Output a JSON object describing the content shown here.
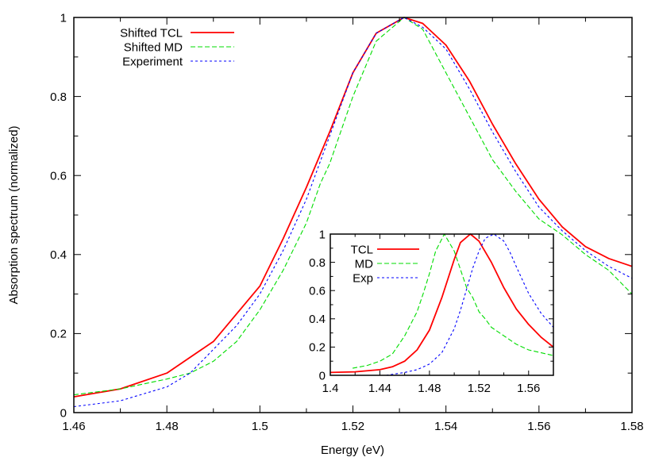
{
  "chart_data": [
    {
      "type": "line",
      "title": "",
      "xlabel": "Energy (eV)",
      "ylabel": "Absorption spectrum (normalized)",
      "xlim": [
        1.46,
        1.58
      ],
      "ylim": [
        0,
        1
      ],
      "xticks": [
        "1.46",
        "1.48",
        "1.5",
        "1.52",
        "1.54",
        "1.56",
        "1.58"
      ],
      "yticks": [
        "0",
        "0.2",
        "0.4",
        "0.6",
        "0.8",
        "1"
      ],
      "grid": false,
      "legend_position": "top-left",
      "series": [
        {
          "name": "Shifted TCL",
          "color": "#ff0000",
          "style": "solid",
          "x": [
            1.46,
            1.47,
            1.48,
            1.49,
            1.5,
            1.505,
            1.51,
            1.515,
            1.52,
            1.525,
            1.531,
            1.535,
            1.54,
            1.545,
            1.55,
            1.555,
            1.56,
            1.565,
            1.57,
            1.575,
            1.58
          ],
          "y": [
            0.04,
            0.06,
            0.1,
            0.18,
            0.32,
            0.44,
            0.57,
            0.71,
            0.86,
            0.96,
            1.0,
            0.985,
            0.93,
            0.84,
            0.73,
            0.63,
            0.54,
            0.47,
            0.42,
            0.39,
            0.37
          ]
        },
        {
          "name": "Shifted MD",
          "color": "#00dd00",
          "style": "dashed",
          "x": [
            1.46,
            1.47,
            1.48,
            1.485,
            1.49,
            1.495,
            1.5,
            1.505,
            1.51,
            1.513,
            1.515,
            1.52,
            1.525,
            1.531,
            1.535,
            1.54,
            1.545,
            1.55,
            1.555,
            1.56,
            1.565,
            1.57,
            1.575,
            1.58
          ],
          "y": [
            0.045,
            0.06,
            0.085,
            0.1,
            0.13,
            0.18,
            0.26,
            0.36,
            0.48,
            0.58,
            0.63,
            0.8,
            0.94,
            1.0,
            0.97,
            0.86,
            0.75,
            0.64,
            0.56,
            0.49,
            0.45,
            0.4,
            0.36,
            0.3
          ]
        },
        {
          "name": "Experiment",
          "color": "#0000ff",
          "style": "dotted",
          "x": [
            1.46,
            1.47,
            1.48,
            1.485,
            1.49,
            1.495,
            1.5,
            1.505,
            1.51,
            1.515,
            1.52,
            1.525,
            1.531,
            1.535,
            1.54,
            1.545,
            1.55,
            1.555,
            1.56,
            1.565,
            1.57,
            1.575,
            1.58
          ],
          "y": [
            0.015,
            0.03,
            0.065,
            0.1,
            0.16,
            0.22,
            0.3,
            0.41,
            0.54,
            0.7,
            0.86,
            0.96,
            1.0,
            0.975,
            0.92,
            0.82,
            0.71,
            0.61,
            0.52,
            0.46,
            0.41,
            0.37,
            0.34
          ]
        }
      ]
    },
    {
      "type": "line",
      "title": "inset",
      "xlabel": "",
      "ylabel": "",
      "xlim": [
        1.4,
        1.58
      ],
      "ylim": [
        0,
        1
      ],
      "xticks": [
        "1.4",
        "1.44",
        "1.48",
        "1.52",
        "1.56"
      ],
      "yticks": [
        "0",
        "0.2",
        "0.4",
        "0.6",
        "0.8",
        "1"
      ],
      "grid": false,
      "legend_position": "top-left",
      "series": [
        {
          "name": "TCL",
          "color": "#ff0000",
          "style": "solid",
          "x": [
            1.4,
            1.42,
            1.44,
            1.45,
            1.46,
            1.47,
            1.48,
            1.49,
            1.5,
            1.505,
            1.513,
            1.52,
            1.53,
            1.54,
            1.55,
            1.56,
            1.57,
            1.58
          ],
          "y": [
            0.02,
            0.025,
            0.04,
            0.06,
            0.1,
            0.18,
            0.32,
            0.55,
            0.82,
            0.94,
            1.0,
            0.95,
            0.8,
            0.62,
            0.47,
            0.36,
            0.27,
            0.2
          ]
        },
        {
          "name": "MD",
          "color": "#00dd00",
          "style": "dashed",
          "x": [
            1.418,
            1.43,
            1.44,
            1.45,
            1.46,
            1.47,
            1.475,
            1.48,
            1.485,
            1.492,
            1.5,
            1.505,
            1.51,
            1.515,
            1.52,
            1.525,
            1.53,
            1.54,
            1.55,
            1.56,
            1.58
          ],
          "y": [
            0.05,
            0.07,
            0.1,
            0.15,
            0.28,
            0.45,
            0.58,
            0.72,
            0.88,
            1.0,
            0.88,
            0.75,
            0.62,
            0.55,
            0.45,
            0.4,
            0.34,
            0.28,
            0.22,
            0.18,
            0.14
          ]
        },
        {
          "name": "Exp",
          "color": "#0000ff",
          "style": "dotted",
          "x": [
            1.445,
            1.46,
            1.47,
            1.48,
            1.49,
            1.5,
            1.505,
            1.51,
            1.515,
            1.52,
            1.525,
            1.532,
            1.54,
            1.545,
            1.55,
            1.56,
            1.57,
            1.58
          ],
          "y": [
            0.0,
            0.02,
            0.04,
            0.08,
            0.16,
            0.33,
            0.46,
            0.61,
            0.76,
            0.88,
            0.97,
            1.0,
            0.95,
            0.87,
            0.77,
            0.58,
            0.44,
            0.34
          ]
        }
      ]
    }
  ]
}
